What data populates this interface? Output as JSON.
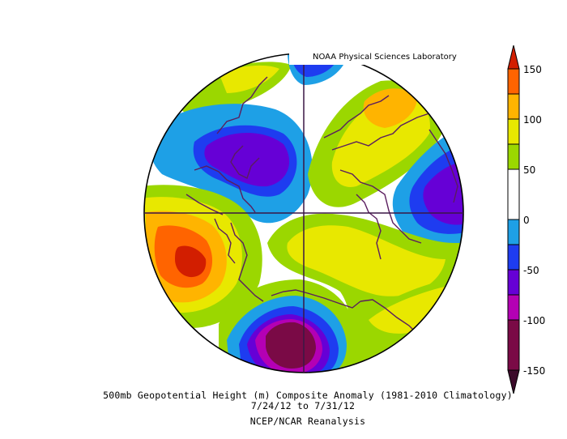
{
  "credit": "NOAA Physical Sciences Laboratory",
  "caption": {
    "line1": "500mb Geopotential Height (m) Composite Anomaly (1981-2010 Climatology)",
    "line2": "7/24/12  to 7/31/12",
    "line3": "NCEP/NCAR Reanalysis"
  },
  "colorbar": {
    "ticks": [
      "150",
      "100",
      "50",
      "0",
      "-50",
      "-100",
      "-150"
    ],
    "tick_values": [
      150,
      100,
      50,
      0,
      -50,
      -100,
      -150
    ],
    "colors": [
      "#7a0a46",
      "#b400b4",
      "#6600d6",
      "#1e3cf0",
      "#1ea0e6",
      "#ffffff",
      "#9bd700",
      "#e8e800",
      "#ffb400",
      "#ff6400",
      "#d21e00"
    ]
  }
}
